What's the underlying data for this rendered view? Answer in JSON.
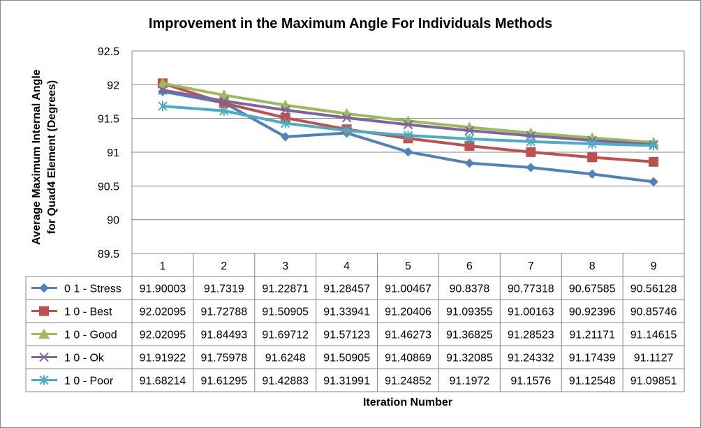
{
  "chart_data": {
    "type": "line",
    "title": "Improvement in the Maximum Angle For Individuals Methods",
    "xlabel": "Iteration Number",
    "ylabel_line1": "Average Maximum Internal Angle",
    "ylabel_line2": "for Quad4 Element (Degrees)",
    "ylim": [
      89.5,
      92.5
    ],
    "yticks": [
      "89.5",
      "90",
      "90.5",
      "91",
      "91.5",
      "92",
      "92.5"
    ],
    "categories": [
      "1",
      "2",
      "3",
      "4",
      "5",
      "6",
      "7",
      "8",
      "9"
    ],
    "grid": true,
    "legend": "data-table",
    "series": [
      {
        "name": "0 1 - Stress",
        "color": "#4F81BD",
        "marker": "diamond",
        "values": [
          91.90003,
          91.7319,
          91.22871,
          91.28457,
          91.00467,
          90.8378,
          90.77318,
          90.67585,
          90.56128
        ],
        "labels": [
          "91.90003",
          "91.7319",
          "91.22871",
          "91.28457",
          "91.00467",
          "90.8378",
          "90.77318",
          "90.67585",
          "90.56128"
        ]
      },
      {
        "name": "1 0 - Best",
        "color": "#C0504D",
        "marker": "square",
        "values": [
          92.02095,
          91.72788,
          91.50905,
          91.33941,
          91.20406,
          91.09355,
          91.00163,
          90.92396,
          90.85746
        ],
        "labels": [
          "92.02095",
          "91.72788",
          "91.50905",
          "91.33941",
          "91.20406",
          "91.09355",
          "91.00163",
          "90.92396",
          "90.85746"
        ]
      },
      {
        "name": "1 0 - Good",
        "color": "#9BBB59",
        "marker": "triangle",
        "values": [
          92.02095,
          91.84493,
          91.69712,
          91.57123,
          91.46273,
          91.36825,
          91.28523,
          91.21171,
          91.14615
        ],
        "labels": [
          "92.02095",
          "91.84493",
          "91.69712",
          "91.57123",
          "91.46273",
          "91.36825",
          "91.28523",
          "91.21171",
          "91.14615"
        ]
      },
      {
        "name": "1 0 - Ok",
        "color": "#8064A2",
        "marker": "x",
        "values": [
          91.91922,
          91.75978,
          91.6248,
          91.50905,
          91.40869,
          91.32085,
          91.24332,
          91.17439,
          91.1127
        ],
        "labels": [
          "91.91922",
          "91.75978",
          "91.6248",
          "91.50905",
          "91.40869",
          "91.32085",
          "91.24332",
          "91.17439",
          "91.1127"
        ]
      },
      {
        "name": "1 0 - Poor",
        "color": "#4BACC6",
        "marker": "star",
        "values": [
          91.68214,
          91.61295,
          91.42883,
          91.31991,
          91.24852,
          91.1972,
          91.1576,
          91.12548,
          91.09851
        ],
        "labels": [
          "91.68214",
          "91.61295",
          "91.42883",
          "91.31991",
          "91.24852",
          "91.1972",
          "91.1576",
          "91.12548",
          "91.09851"
        ]
      }
    ]
  }
}
